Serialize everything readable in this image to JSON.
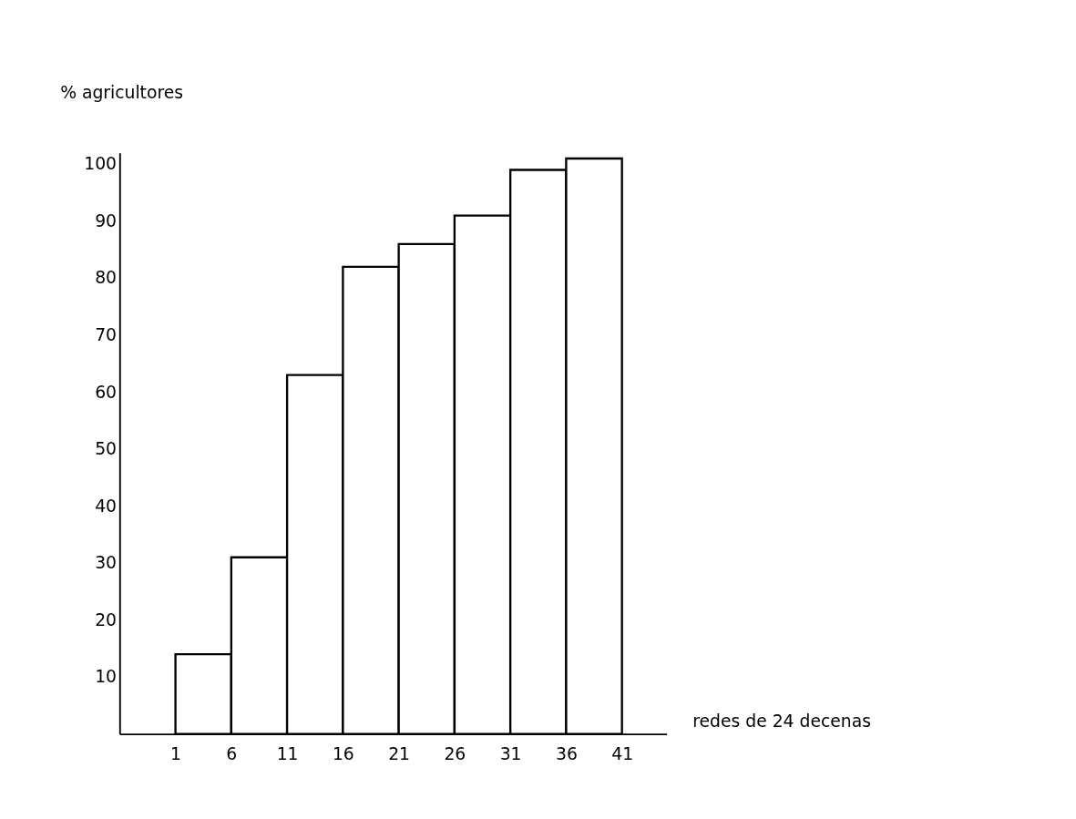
{
  "chart_data": {
    "type": "histogram",
    "ylabel": "% agricultores",
    "xlabel": "redes de 24 decenas",
    "bins": [
      1,
      6,
      11,
      16,
      21,
      26,
      31,
      36,
      41
    ],
    "values": [
      14,
      31,
      63,
      82,
      86,
      91,
      99,
      101
    ],
    "color": "#ffffff",
    "xlim": [
      -4,
      45
    ],
    "xticks": [
      1,
      6,
      11,
      16,
      21,
      26,
      31,
      36,
      41
    ],
    "ylim": [
      0,
      102
    ],
    "yticks": [
      10,
      20,
      30,
      40,
      50,
      60,
      70,
      80,
      90,
      100
    ],
    "grid": false
  }
}
